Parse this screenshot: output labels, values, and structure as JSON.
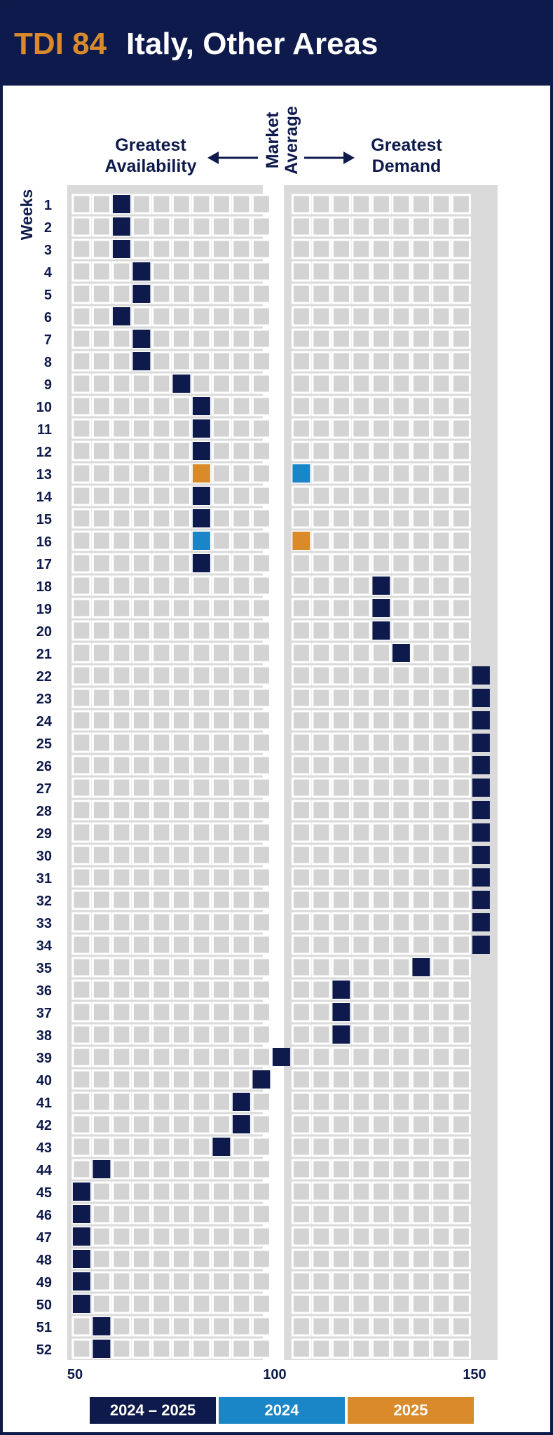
{
  "header": {
    "code": "TDI 84",
    "title": "Italy, Other Areas"
  },
  "colors": {
    "navy": "#0e1a4b",
    "blue": "#1b86c7",
    "orange": "#d98a2b",
    "grid": "#dadada"
  },
  "chart_data": {
    "type": "heatmap",
    "title": "Italy, Other Areas",
    "left_label": [
      "Greatest",
      "Availability"
    ],
    "center_label": [
      "Market",
      "Average"
    ],
    "right_label": [
      "Greatest",
      "Demand"
    ],
    "ylabel": "Weeks",
    "xlim": [
      50,
      150
    ],
    "x_ticks": [
      50,
      100,
      150
    ],
    "market_average": 100,
    "weeks": [
      1,
      2,
      3,
      4,
      5,
      6,
      7,
      8,
      9,
      10,
      11,
      12,
      13,
      14,
      15,
      16,
      17,
      18,
      19,
      20,
      21,
      22,
      23,
      24,
      25,
      26,
      27,
      28,
      29,
      30,
      31,
      32,
      33,
      34,
      35,
      36,
      37,
      38,
      39,
      40,
      41,
      42,
      43,
      44,
      45,
      46,
      47,
      48,
      49,
      50,
      51,
      52
    ],
    "series": [
      {
        "name": "2024 – 2025",
        "color": "#0e1a4b",
        "values": [
          62,
          62,
          62,
          67,
          67,
          62,
          67,
          67,
          77,
          82,
          82,
          82,
          null,
          82,
          82,
          null,
          82,
          127,
          127,
          127,
          132,
          152,
          152,
          152,
          152,
          152,
          152,
          152,
          152,
          152,
          152,
          152,
          152,
          152,
          137,
          117,
          117,
          117,
          102,
          97,
          92,
          92,
          87,
          57,
          52,
          52,
          52,
          52,
          52,
          52,
          57,
          57
        ]
      },
      {
        "name": "2024",
        "color": "#1b86c7",
        "values": [
          null,
          null,
          null,
          null,
          null,
          null,
          null,
          null,
          null,
          null,
          null,
          null,
          107,
          null,
          null,
          82,
          null,
          null,
          null,
          null,
          null,
          null,
          null,
          null,
          null,
          null,
          null,
          null,
          null,
          null,
          null,
          null,
          null,
          null,
          null,
          null,
          null,
          null,
          null,
          null,
          null,
          null,
          null,
          null,
          null,
          null,
          null,
          null,
          null,
          null,
          null,
          null
        ]
      },
      {
        "name": "2025",
        "color": "#d98a2b",
        "values": [
          null,
          null,
          null,
          null,
          null,
          null,
          null,
          null,
          null,
          null,
          null,
          null,
          82,
          null,
          null,
          107,
          null,
          null,
          null,
          null,
          null,
          null,
          null,
          null,
          null,
          null,
          null,
          null,
          null,
          null,
          null,
          null,
          null,
          null,
          null,
          null,
          null,
          null,
          null,
          null,
          null,
          null,
          null,
          null,
          null,
          null,
          null,
          null,
          null,
          null,
          null,
          null
        ]
      }
    ],
    "legend": [
      "2024 – 2025",
      "2024",
      "2025"
    ]
  }
}
